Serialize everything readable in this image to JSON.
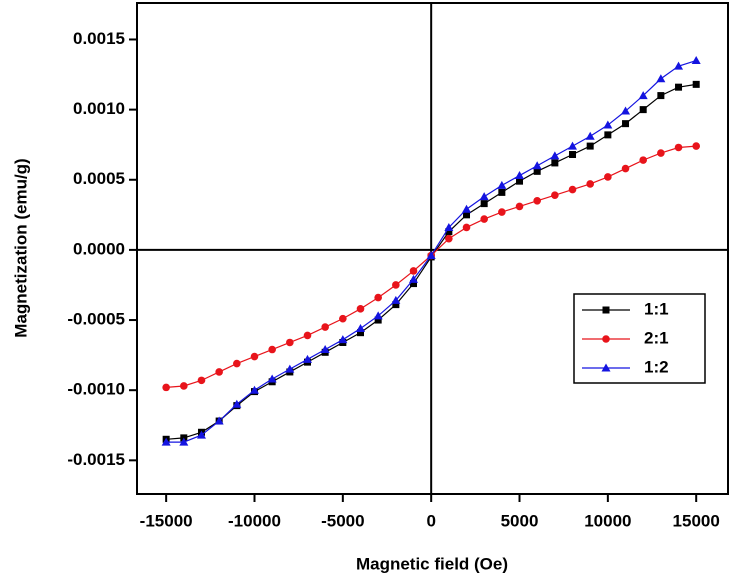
{
  "chart_data": {
    "type": "line",
    "x_label": "Magnetic field (Oe)",
    "y_label": "Magnetization (emu/g)",
    "x": [
      -15000,
      -14000,
      -13000,
      -12000,
      -11000,
      -10000,
      -9000,
      -8000,
      -7000,
      -6000,
      -5000,
      -4000,
      -3000,
      -2000,
      -1000,
      0,
      1000,
      2000,
      3000,
      4000,
      5000,
      6000,
      7000,
      8000,
      9000,
      10000,
      11000,
      12000,
      13000,
      14000,
      15000
    ],
    "series": [
      {
        "name": "1:1",
        "color": "#000000",
        "marker": "square",
        "values": [
          -0.00135,
          -0.00134,
          -0.0013,
          -0.00122,
          -0.00111,
          -0.00101,
          -0.00094,
          -0.00087,
          -0.0008,
          -0.00073,
          -0.00066,
          -0.00059,
          -0.0005,
          -0.00039,
          -0.00024,
          -5e-05,
          0.00013,
          0.00025,
          0.00033,
          0.00041,
          0.00049,
          0.00056,
          0.00062,
          0.00068,
          0.00074,
          0.00082,
          0.0009,
          0.001,
          0.0011,
          0.00116,
          0.00118
        ]
      },
      {
        "name": "2:1",
        "color": "#e8141b",
        "marker": "circle",
        "values": [
          -0.00098,
          -0.00097,
          -0.00093,
          -0.00087,
          -0.00081,
          -0.00076,
          -0.00071,
          -0.00066,
          -0.00061,
          -0.00055,
          -0.00049,
          -0.00042,
          -0.00034,
          -0.00025,
          -0.00015,
          -4e-05,
          8e-05,
          0.00016,
          0.00022,
          0.00027,
          0.00031,
          0.00035,
          0.00039,
          0.00043,
          0.00047,
          0.00052,
          0.00058,
          0.00064,
          0.00069,
          0.00073,
          0.00074
        ]
      },
      {
        "name": "1:2",
        "color": "#1414e0",
        "marker": "triangle",
        "values": [
          -0.00137,
          -0.00137,
          -0.00132,
          -0.00122,
          -0.0011,
          -0.001,
          -0.00092,
          -0.00085,
          -0.00078,
          -0.00071,
          -0.00064,
          -0.00056,
          -0.00047,
          -0.00036,
          -0.00021,
          -4e-05,
          0.00016,
          0.00029,
          0.00038,
          0.00046,
          0.00053,
          0.0006,
          0.00067,
          0.00074,
          0.00081,
          0.00089,
          0.00099,
          0.0011,
          0.00122,
          0.00131,
          0.00135
        ]
      }
    ],
    "xlim": [
      -16650,
      16800
    ],
    "ylim": [
      -0.00174,
      0.00176
    ],
    "xticks": [
      -15000,
      -10000,
      -5000,
      0,
      5000,
      10000,
      15000
    ],
    "yticks": [
      {
        "value": -0.0015,
        "label": "-0.0015"
      },
      {
        "value": -0.001,
        "label": "-0.0010"
      },
      -0.0005,
      {
        "value": 0,
        "label": "0.0000"
      },
      0.0005,
      {
        "value": 0.001,
        "label": "0.0010"
      },
      0.0015
    ],
    "zero_lines": true,
    "legend": "right"
  }
}
